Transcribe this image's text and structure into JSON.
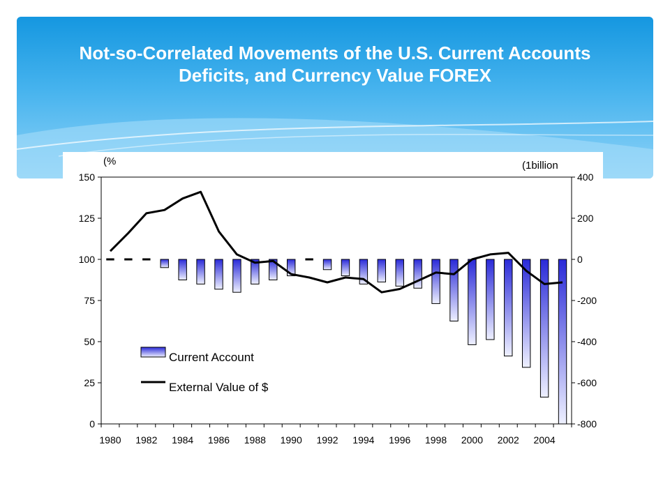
{
  "title": "Not-so-Correlated Movements of the U.S. Current Accounts Deficits, and Currency Value FOREX",
  "colors": {
    "banner_top": "#1597e0",
    "banner_bottom": "#8fd3f7",
    "bar_dark": "#2a2ad8",
    "bar_light": "#eef0ff",
    "line": "#000000"
  },
  "chart_data": {
    "type": "bar+line",
    "y_left_unit": "(%",
    "y_right_unit": "(1billion",
    "y_left_ticks": [
      "150",
      "125",
      "100",
      "75",
      "50",
      "25",
      "0"
    ],
    "y_right_ticks": [
      "400",
      "200",
      "0",
      "-200",
      "-400",
      "-600",
      "-800"
    ],
    "ylim_left": [
      0,
      150
    ],
    "ylim_right": [
      -800,
      400
    ],
    "x_tick_labels": [
      "1980",
      "1982",
      "1984",
      "1986",
      "1988",
      "1990",
      "1992",
      "1994",
      "1996",
      "1998",
      "2000",
      "2002",
      "2004"
    ],
    "years": [
      1980,
      1981,
      1982,
      1983,
      1984,
      1985,
      1986,
      1987,
      1988,
      1989,
      1990,
      1991,
      1992,
      1993,
      1994,
      1995,
      1996,
      1997,
      1998,
      1999,
      2000,
      2001,
      2002,
      2003,
      2004,
      2005
    ],
    "series": [
      {
        "name": "Current Account",
        "axis": "right",
        "kind": "bar",
        "values": [
          2,
          5,
          -6,
          -40,
          -100,
          -120,
          -145,
          -160,
          -120,
          -100,
          -80,
          3,
          -50,
          -80,
          -120,
          -110,
          -130,
          -140,
          -215,
          -300,
          -415,
          -390,
          -470,
          -525,
          -670,
          -800
        ]
      },
      {
        "name": "External Value of $",
        "axis": "left",
        "kind": "line",
        "values": [
          105,
          116,
          128,
          130,
          137,
          141,
          117,
          103,
          98,
          99,
          91,
          89,
          86,
          89,
          88,
          80,
          82,
          87,
          92,
          91,
          100,
          103,
          104,
          93,
          85,
          86
        ]
      }
    ],
    "legend_position": "lower-left",
    "grid": false
  }
}
